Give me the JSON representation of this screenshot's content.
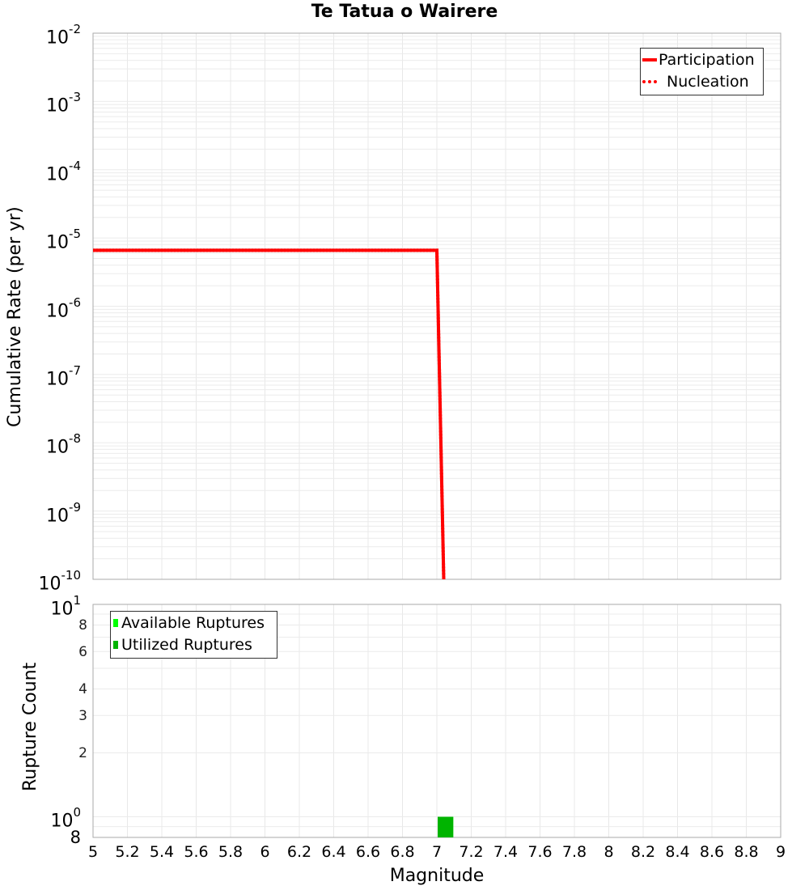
{
  "title": "Te Tatua o Wairere",
  "top_plot": {
    "ylabel": "Cumulative Rate (per yr)",
    "yticks": [
      {
        "base": "10",
        "exp": "-2"
      },
      {
        "base": "10",
        "exp": "-3"
      },
      {
        "base": "10",
        "exp": "-4"
      },
      {
        "base": "10",
        "exp": "-5"
      },
      {
        "base": "10",
        "exp": "-6"
      },
      {
        "base": "10",
        "exp": "-7"
      },
      {
        "base": "10",
        "exp": "-8"
      },
      {
        "base": "10",
        "exp": "-9"
      },
      {
        "base": "10",
        "exp": "-10"
      }
    ],
    "legend": [
      {
        "label": "Participation",
        "color": "#ff0000",
        "style": "solid"
      },
      {
        "label": "Nucleation",
        "color": "#ff0000",
        "style": "dotted"
      }
    ]
  },
  "bottom_plot": {
    "ylabel": "Rupture Count",
    "yticks_major": [
      {
        "base": "10",
        "exp": "1"
      },
      {
        "base": "10",
        "exp": "0"
      }
    ],
    "yticks_minor": [
      "8",
      "6",
      "4",
      "3",
      "2"
    ],
    "ytick_bottom": "8",
    "legend": [
      {
        "label": "Available Ruptures",
        "color": "#00ff00"
      },
      {
        "label": "Utilized Ruptures",
        "color": "#00b400"
      }
    ]
  },
  "xaxis": {
    "label": "Magnitude",
    "ticks": [
      "5",
      "5.2",
      "5.4",
      "5.6",
      "5.8",
      "6",
      "6.2",
      "6.4",
      "6.6",
      "6.8",
      "7",
      "7.2",
      "7.4",
      "7.6",
      "7.8",
      "8",
      "8.2",
      "8.4",
      "8.6",
      "8.8",
      "9"
    ]
  },
  "chart_data": [
    {
      "type": "line",
      "title": "Te Tatua o Wairere",
      "xlabel": "Magnitude",
      "ylabel": "Cumulative Rate (per yr)",
      "yscale": "log",
      "xlim": [
        5,
        9
      ],
      "ylim": [
        1e-10,
        0.01
      ],
      "grid": true,
      "legend_position": "top-right",
      "series": [
        {
          "name": "Participation",
          "style": "solid",
          "color": "#ff0000",
          "x": [
            5.0,
            7.0,
            7.04
          ],
          "y": [
            6.6e-06,
            6.6e-06,
            1e-10
          ]
        },
        {
          "name": "Nucleation",
          "style": "dotted",
          "color": "#ff0000",
          "x": [
            5.0,
            7.0,
            7.04
          ],
          "y": [
            6.6e-06,
            6.6e-06,
            1e-10
          ]
        }
      ]
    },
    {
      "type": "bar",
      "xlabel": "Magnitude",
      "ylabel": "Rupture Count",
      "yscale": "log",
      "xlim": [
        5,
        9
      ],
      "ylim": [
        0.8,
        10
      ],
      "grid": true,
      "legend_position": "top-left",
      "series": [
        {
          "name": "Available Ruptures",
          "color": "#00ff00",
          "bins": [
            {
              "x0": 7.0,
              "x1": 7.1,
              "value": 1
            }
          ]
        },
        {
          "name": "Utilized Ruptures",
          "color": "#00b400",
          "bins": [
            {
              "x0": 7.0,
              "x1": 7.1,
              "value": 1
            }
          ]
        }
      ]
    }
  ]
}
